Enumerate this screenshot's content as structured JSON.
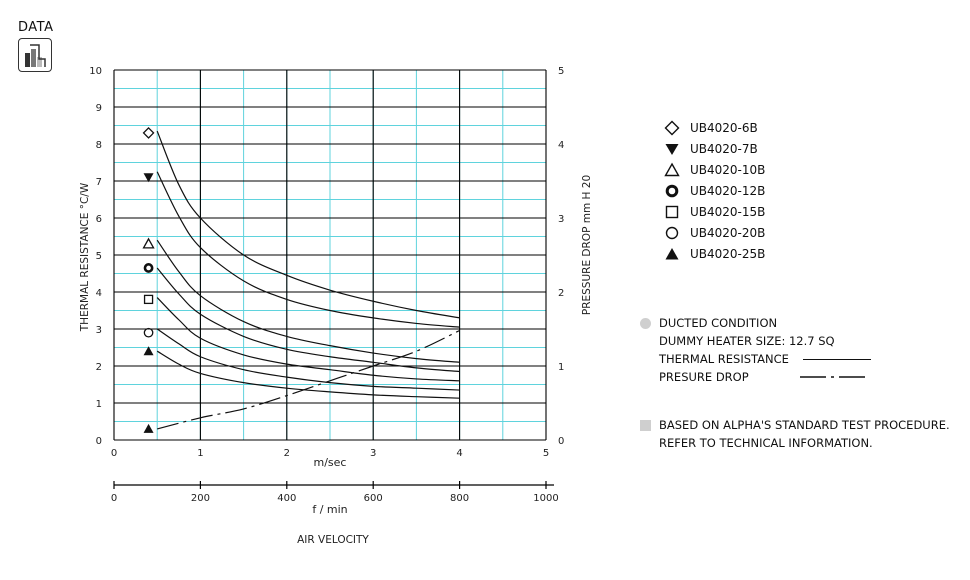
{
  "badge": {
    "label": "DATA",
    "icon": "bar-chart-icon"
  },
  "chart_data": {
    "type": "line",
    "xlabel_top": "m/sec",
    "xlabel_bottom": "f / min",
    "axis_caption": "AIR VELOCITY",
    "ylabel_left": "THERMAL RESISTANCE  °C/W",
    "ylabel_right": "PRESSURE  DROP   mm H 20",
    "xlim": [
      0,
      5
    ],
    "ylim_left": [
      0,
      10
    ],
    "ylim_right": [
      0,
      5
    ],
    "x_ticks": [
      "0",
      "1",
      "2",
      "3",
      "4",
      "5"
    ],
    "x_ticks_fpm": [
      "0",
      "200",
      "400",
      "600",
      "800",
      "1000"
    ],
    "y_ticks_left": [
      "0",
      "1",
      "2",
      "3",
      "4",
      "5",
      "6",
      "7",
      "8",
      "9",
      "10"
    ],
    "y_ticks_right": [
      "0",
      "1",
      "2",
      "3",
      "4",
      "5"
    ],
    "grid": true,
    "legend_position": "right",
    "series": [
      {
        "name": "UB4020-6B",
        "marker": "diamond-open",
        "marker_value": 8.3,
        "x": [
          0.5,
          0.75,
          1.0,
          1.5,
          2.0,
          2.5,
          3.0,
          3.5,
          4.0
        ],
        "y": [
          8.35,
          6.9,
          6.0,
          5.0,
          4.45,
          4.05,
          3.75,
          3.5,
          3.3
        ]
      },
      {
        "name": "UB4020-7B",
        "marker": "triangle-down-filled",
        "marker_value": 7.1,
        "x": [
          0.5,
          0.75,
          1.0,
          1.5,
          2.0,
          2.5,
          3.0,
          3.5,
          4.0
        ],
        "y": [
          7.25,
          6.05,
          5.2,
          4.3,
          3.8,
          3.5,
          3.3,
          3.15,
          3.05
        ]
      },
      {
        "name": "UB4020-10B",
        "marker": "triangle-up-open",
        "marker_value": 5.3,
        "x": [
          0.5,
          0.75,
          1.0,
          1.5,
          2.0,
          2.5,
          3.0,
          3.5,
          4.0
        ],
        "y": [
          5.4,
          4.55,
          3.9,
          3.2,
          2.8,
          2.55,
          2.35,
          2.2,
          2.1
        ]
      },
      {
        "name": "UB4020-12B",
        "marker": "circle-bold",
        "marker_value": 4.65,
        "x": [
          0.5,
          0.75,
          1.0,
          1.5,
          2.0,
          2.5,
          3.0,
          3.5,
          4.0
        ],
        "y": [
          4.65,
          3.95,
          3.4,
          2.8,
          2.45,
          2.25,
          2.1,
          1.95,
          1.85
        ]
      },
      {
        "name": "UB4020-15B",
        "marker": "square-open",
        "marker_value": 3.8,
        "x": [
          0.5,
          0.75,
          1.0,
          1.5,
          2.0,
          2.5,
          3.0,
          3.5,
          4.0
        ],
        "y": [
          3.85,
          3.25,
          2.75,
          2.3,
          2.05,
          1.9,
          1.75,
          1.65,
          1.6
        ]
      },
      {
        "name": "UB4020-20B",
        "marker": "circle-open",
        "marker_value": 2.9,
        "x": [
          0.5,
          0.75,
          1.0,
          1.5,
          2.0,
          2.5,
          3.0,
          3.5,
          4.0
        ],
        "y": [
          3.0,
          2.6,
          2.25,
          1.9,
          1.7,
          1.55,
          1.45,
          1.4,
          1.35
        ]
      },
      {
        "name": "UB4020-25B",
        "marker": "triangle-up-filled",
        "marker_value": 2.4,
        "x": [
          0.5,
          0.75,
          1.0,
          1.5,
          2.0,
          2.5,
          3.0,
          3.5,
          4.0
        ],
        "y": [
          2.4,
          2.05,
          1.8,
          1.55,
          1.4,
          1.3,
          1.22,
          1.17,
          1.13
        ]
      }
    ],
    "pressure_drop": {
      "marker": "triangle-up-filled",
      "marker_value": 0.15,
      "x": [
        0.5,
        1.0,
        1.5,
        2.0,
        2.5,
        3.0,
        3.5,
        4.0
      ],
      "y": [
        0.15,
        0.3,
        0.42,
        0.6,
        0.8,
        1.0,
        1.2,
        1.48
      ]
    }
  },
  "notes": {
    "ducted": "DUCTED CONDITION",
    "heater": "DUMMY HEATER SIZE: 12.7 SQ",
    "thermal_label": "THERMAL RESISTANCE",
    "pressure_label": "PRESURE DROP",
    "procedure": "BASED ON ALPHA'S STANDARD TEST PROCEDURE.",
    "refer": "REFER TO TECHNICAL INFORMATION."
  },
  "colors": {
    "grid_major": "#000000",
    "grid_minor": "#5fd3dd",
    "bullet": "#cfcfcf"
  }
}
